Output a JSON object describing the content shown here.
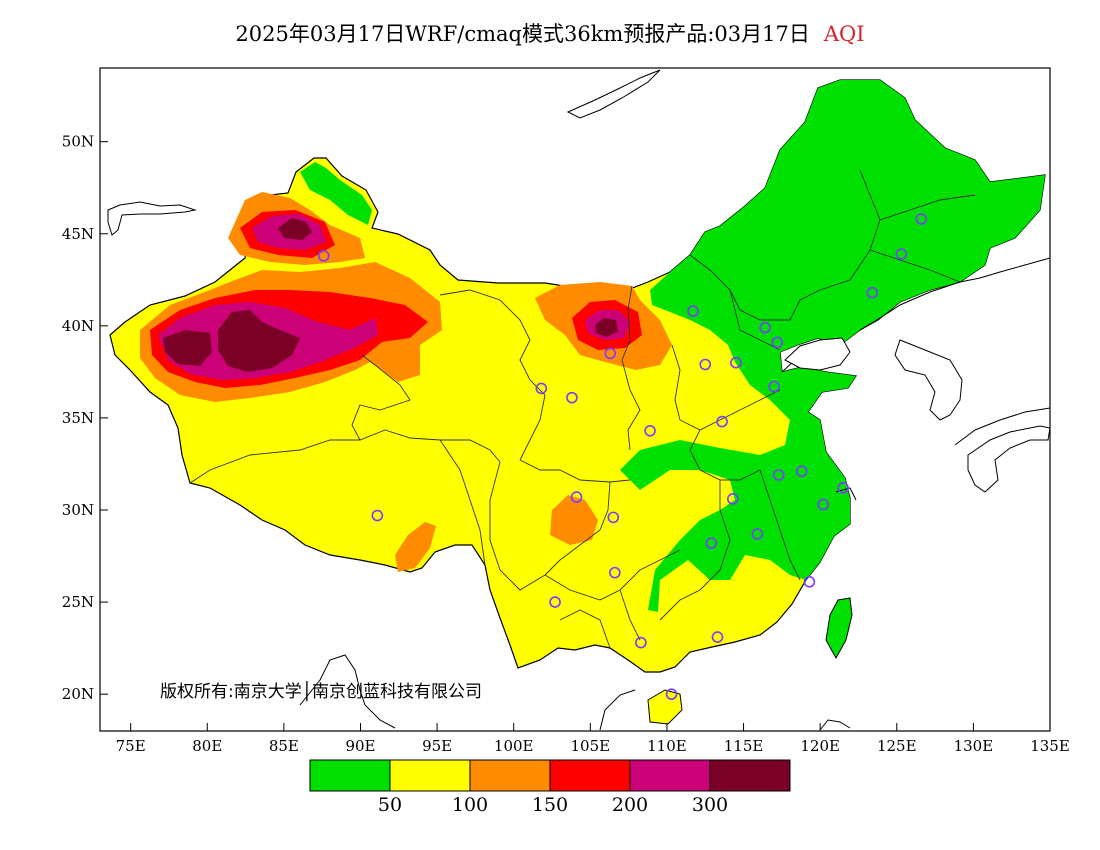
{
  "title": {
    "text": "2025年03月17日WRF/cmaq模式36km预报产品:03月17日",
    "variable": "AQI"
  },
  "copyright": "版权所有:南京大学│南京创蓝科技有限公司",
  "axes": {
    "lon_range": [
      73,
      135
    ],
    "lat_range": [
      18,
      54
    ],
    "x_ticks": [
      {
        "value": 75,
        "label": "75E"
      },
      {
        "value": 80,
        "label": "80E"
      },
      {
        "value": 85,
        "label": "85E"
      },
      {
        "value": 90,
        "label": "90E"
      },
      {
        "value": 95,
        "label": "95E"
      },
      {
        "value": 100,
        "label": "100E"
      },
      {
        "value": 105,
        "label": "105E"
      },
      {
        "value": 110,
        "label": "110E"
      },
      {
        "value": 115,
        "label": "115E"
      },
      {
        "value": 120,
        "label": "120E"
      },
      {
        "value": 125,
        "label": "125E"
      },
      {
        "value": 130,
        "label": "130E"
      },
      {
        "value": 135,
        "label": "135E"
      }
    ],
    "y_ticks": [
      {
        "value": 20,
        "label": "20N"
      },
      {
        "value": 25,
        "label": "25N"
      },
      {
        "value": 30,
        "label": "30N"
      },
      {
        "value": 35,
        "label": "35N"
      },
      {
        "value": 40,
        "label": "40N"
      },
      {
        "value": 45,
        "label": "45N"
      },
      {
        "value": 50,
        "label": "50N"
      }
    ]
  },
  "legend": {
    "colors": [
      "#00e000",
      "#ffff00",
      "#ff8c00",
      "#ff0000",
      "#cc0077",
      "#7a0026"
    ],
    "labels": [
      "50",
      "100",
      "150",
      "200",
      "300"
    ]
  },
  "colors": {
    "good": "#00e000",
    "moderate": "#ffff00",
    "unhealthy_sensitive": "#ff8c00",
    "unhealthy": "#ff0000",
    "very_unhealthy": "#cc0077",
    "hazardous": "#7a0026",
    "city_marker": "#7a3cff"
  },
  "cities": [
    {
      "lon": 87.6,
      "lat": 43.8
    },
    {
      "lon": 91.1,
      "lat": 29.7
    },
    {
      "lon": 101.8,
      "lat": 36.6
    },
    {
      "lon": 103.8,
      "lat": 36.1
    },
    {
      "lon": 106.3,
      "lat": 38.5
    },
    {
      "lon": 106.6,
      "lat": 26.6
    },
    {
      "lon": 102.7,
      "lat": 25.0
    },
    {
      "lon": 104.1,
      "lat": 30.7
    },
    {
      "lon": 106.5,
      "lat": 29.6
    },
    {
      "lon": 108.9,
      "lat": 34.3
    },
    {
      "lon": 111.7,
      "lat": 40.8
    },
    {
      "lon": 112.5,
      "lat": 37.9
    },
    {
      "lon": 114.5,
      "lat": 38.0
    },
    {
      "lon": 116.4,
      "lat": 39.9
    },
    {
      "lon": 117.2,
      "lat": 39.1
    },
    {
      "lon": 117.0,
      "lat": 36.7
    },
    {
      "lon": 113.6,
      "lat": 34.8
    },
    {
      "lon": 114.3,
      "lat": 30.6
    },
    {
      "lon": 112.9,
      "lat": 28.2
    },
    {
      "lon": 115.9,
      "lat": 28.7
    },
    {
      "lon": 117.3,
      "lat": 31.9
    },
    {
      "lon": 118.8,
      "lat": 32.1
    },
    {
      "lon": 120.2,
      "lat": 30.3
    },
    {
      "lon": 121.5,
      "lat": 31.2
    },
    {
      "lon": 119.3,
      "lat": 26.1
    },
    {
      "lon": 113.3,
      "lat": 23.1
    },
    {
      "lon": 108.3,
      "lat": 22.8
    },
    {
      "lon": 110.3,
      "lat": 20.0
    },
    {
      "lon": 123.4,
      "lat": 41.8
    },
    {
      "lon": 125.3,
      "lat": 43.9
    },
    {
      "lon": 126.6,
      "lat": 45.8
    }
  ]
}
